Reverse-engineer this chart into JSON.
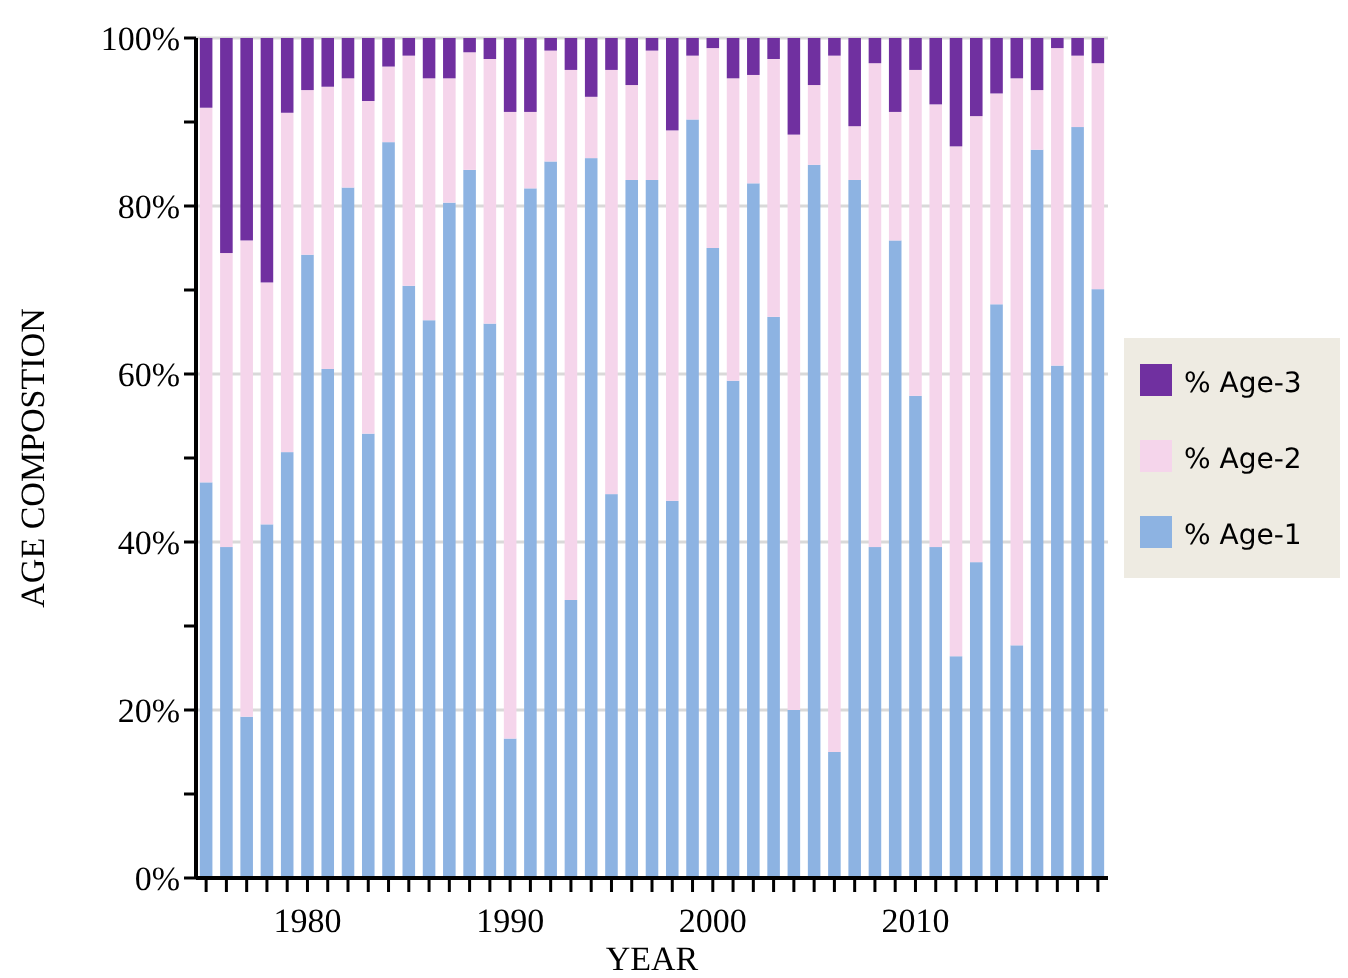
{
  "chart_data": {
    "type": "bar",
    "stacked": true,
    "xlabel": "YEAR",
    "ylabel": "AGE COMPOSTION",
    "x": [
      1975,
      1976,
      1977,
      1978,
      1979,
      1980,
      1981,
      1982,
      1983,
      1984,
      1985,
      1986,
      1987,
      1988,
      1989,
      1990,
      1991,
      1992,
      1993,
      1994,
      1995,
      1996,
      1997,
      1998,
      1999,
      2000,
      2001,
      2002,
      2003,
      2004,
      2005,
      2006,
      2007,
      2008,
      2009,
      2010,
      2011,
      2012,
      2013,
      2014,
      2015,
      2016,
      2017,
      2018,
      2019
    ],
    "xlim": [
      1974.5,
      2019.5
    ],
    "xticks": [
      {
        "value": 1975,
        "label": null
      },
      {
        "value": 1976,
        "label": null
      },
      {
        "value": 1977,
        "label": null
      },
      {
        "value": 1978,
        "label": null
      },
      {
        "value": 1979,
        "label": null
      },
      1980,
      {
        "value": 1981,
        "label": null
      },
      {
        "value": 1982,
        "label": null
      },
      {
        "value": 1983,
        "label": null
      },
      {
        "value": 1984,
        "label": null
      },
      {
        "value": 1985,
        "label": null
      },
      {
        "value": 1986,
        "label": null
      },
      {
        "value": 1987,
        "label": null
      },
      {
        "value": 1988,
        "label": null
      },
      {
        "value": 1989,
        "label": null
      },
      1990,
      {
        "value": 1991,
        "label": null
      },
      {
        "value": 1992,
        "label": null
      },
      {
        "value": 1993,
        "label": null
      },
      {
        "value": 1994,
        "label": null
      },
      {
        "value": 1995,
        "label": null
      },
      {
        "value": 1996,
        "label": null
      },
      {
        "value": 1997,
        "label": null
      },
      {
        "value": 1998,
        "label": null
      },
      {
        "value": 1999,
        "label": null
      },
      2000,
      {
        "value": 2001,
        "label": null
      },
      {
        "value": 2002,
        "label": null
      },
      {
        "value": 2003,
        "label": null
      },
      {
        "value": 2004,
        "label": null
      },
      {
        "value": 2005,
        "label": null
      },
      {
        "value": 2006,
        "label": null
      },
      {
        "value": 2007,
        "label": null
      },
      {
        "value": 2008,
        "label": null
      },
      {
        "value": 2009,
        "label": null
      },
      2010,
      {
        "value": 2011,
        "label": null
      },
      {
        "value": 2012,
        "label": null
      },
      {
        "value": 2013,
        "label": null
      },
      {
        "value": 2014,
        "label": null
      },
      {
        "value": 2015,
        "label": null
      },
      {
        "value": 2016,
        "label": null
      },
      {
        "value": 2017,
        "label": null
      },
      {
        "value": 2018,
        "label": null
      },
      {
        "value": 2019,
        "label": null
      }
    ],
    "ylim": [
      0,
      100
    ],
    "yticks": [
      {
        "value": 0,
        "label": "0%"
      },
      {
        "value": 10,
        "label": null
      },
      {
        "value": 20,
        "label": "20%"
      },
      {
        "value": 30,
        "label": null
      },
      {
        "value": 40,
        "label": "40%"
      },
      {
        "value": 50,
        "label": null
      },
      {
        "value": 60,
        "label": "60%"
      },
      {
        "value": 70,
        "label": null
      },
      {
        "value": 80,
        "label": "80%"
      },
      {
        "value": 90,
        "label": null
      },
      {
        "value": 100,
        "label": "100%"
      }
    ],
    "grid": "y",
    "legend": "right",
    "series": [
      {
        "name": "% Age-1",
        "color": "#8db3e2",
        "values": [
          47.1,
          39.4,
          19.2,
          42.1,
          50.7,
          74.2,
          60.6,
          82.2,
          52.9,
          87.6,
          70.5,
          66.4,
          80.4,
          84.3,
          66.0,
          16.6,
          82.1,
          85.3,
          33.1,
          85.7,
          45.7,
          83.1,
          83.1,
          44.9,
          90.3,
          75.0,
          59.2,
          82.7,
          66.8,
          20.0,
          84.9,
          15.0,
          83.1,
          39.4,
          75.9,
          57.4,
          39.4,
          26.4,
          37.6,
          68.3,
          27.7,
          86.7,
          61.0,
          89.4,
          70.1
        ]
      },
      {
        "name": "% Age-2",
        "color": "#f5d5eb",
        "values": [
          44.6,
          35.0,
          56.7,
          28.8,
          40.4,
          19.6,
          33.6,
          13.0,
          39.6,
          9.0,
          27.4,
          28.8,
          14.8,
          14.0,
          31.5,
          74.6,
          9.1,
          13.2,
          63.1,
          7.3,
          50.5,
          11.3,
          15.4,
          44.1,
          7.6,
          23.8,
          36.0,
          12.9,
          30.7,
          68.5,
          9.5,
          82.9,
          6.4,
          57.6,
          15.3,
          38.8,
          52.7,
          60.7,
          53.1,
          25.1,
          67.5,
          7.1,
          37.8,
          8.5,
          26.9
        ]
      },
      {
        "name": "% Age-3",
        "color": "#7030a0",
        "values": [
          8.3,
          25.6,
          24.1,
          29.1,
          8.9,
          6.2,
          5.8,
          4.8,
          7.5,
          3.4,
          2.1,
          4.8,
          4.8,
          1.7,
          2.5,
          8.8,
          8.8,
          1.5,
          3.8,
          7.0,
          3.8,
          5.6,
          1.5,
          11.0,
          2.1,
          1.2,
          4.8,
          4.4,
          2.5,
          11.5,
          5.6,
          2.1,
          10.5,
          3.0,
          8.8,
          3.8,
          7.9,
          12.9,
          9.3,
          6.6,
          4.8,
          6.2,
          1.2,
          2.1,
          3.0
        ]
      }
    ]
  }
}
